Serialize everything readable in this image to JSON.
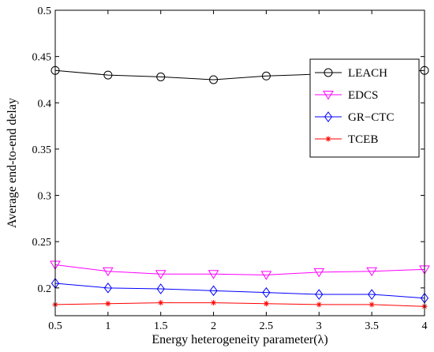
{
  "chart_data": {
    "type": "line",
    "title": "",
    "xlabel": "Energy heterogeneity parameter(λ)",
    "ylabel": "Average end-to-end delay",
    "x": [
      0.5,
      1,
      1.5,
      2,
      2.5,
      3,
      3.5,
      4
    ],
    "xticks": [
      "0.5",
      "1",
      "1.5",
      "2",
      "2.5",
      "3",
      "3.5",
      "4"
    ],
    "yticks": [
      "0.2",
      "0.25",
      "0.3",
      "0.35",
      "0.4",
      "0.45",
      "0.5"
    ],
    "xlim": [
      0.5,
      4
    ],
    "ylim": [
      0.17,
      0.5
    ],
    "grid": false,
    "legend_position": "top-right",
    "series": [
      {
        "name": "LEACH",
        "color": "#000000",
        "marker": "circle",
        "values": [
          0.435,
          0.43,
          0.428,
          0.425,
          0.429,
          0.431,
          0.432,
          0.435
        ]
      },
      {
        "name": "EDCS",
        "color": "#ff00ff",
        "marker": "triangle-down",
        "values": [
          0.225,
          0.218,
          0.215,
          0.215,
          0.214,
          0.217,
          0.218,
          0.22
        ]
      },
      {
        "name": "GR−CTC",
        "color": "#0000ff",
        "marker": "diamond",
        "values": [
          0.205,
          0.2,
          0.199,
          0.197,
          0.195,
          0.193,
          0.193,
          0.189
        ]
      },
      {
        "name": "TCEB",
        "color": "#ff0000",
        "marker": "asterisk",
        "values": [
          0.182,
          0.183,
          0.184,
          0.184,
          0.183,
          0.182,
          0.182,
          0.18
        ]
      }
    ]
  }
}
